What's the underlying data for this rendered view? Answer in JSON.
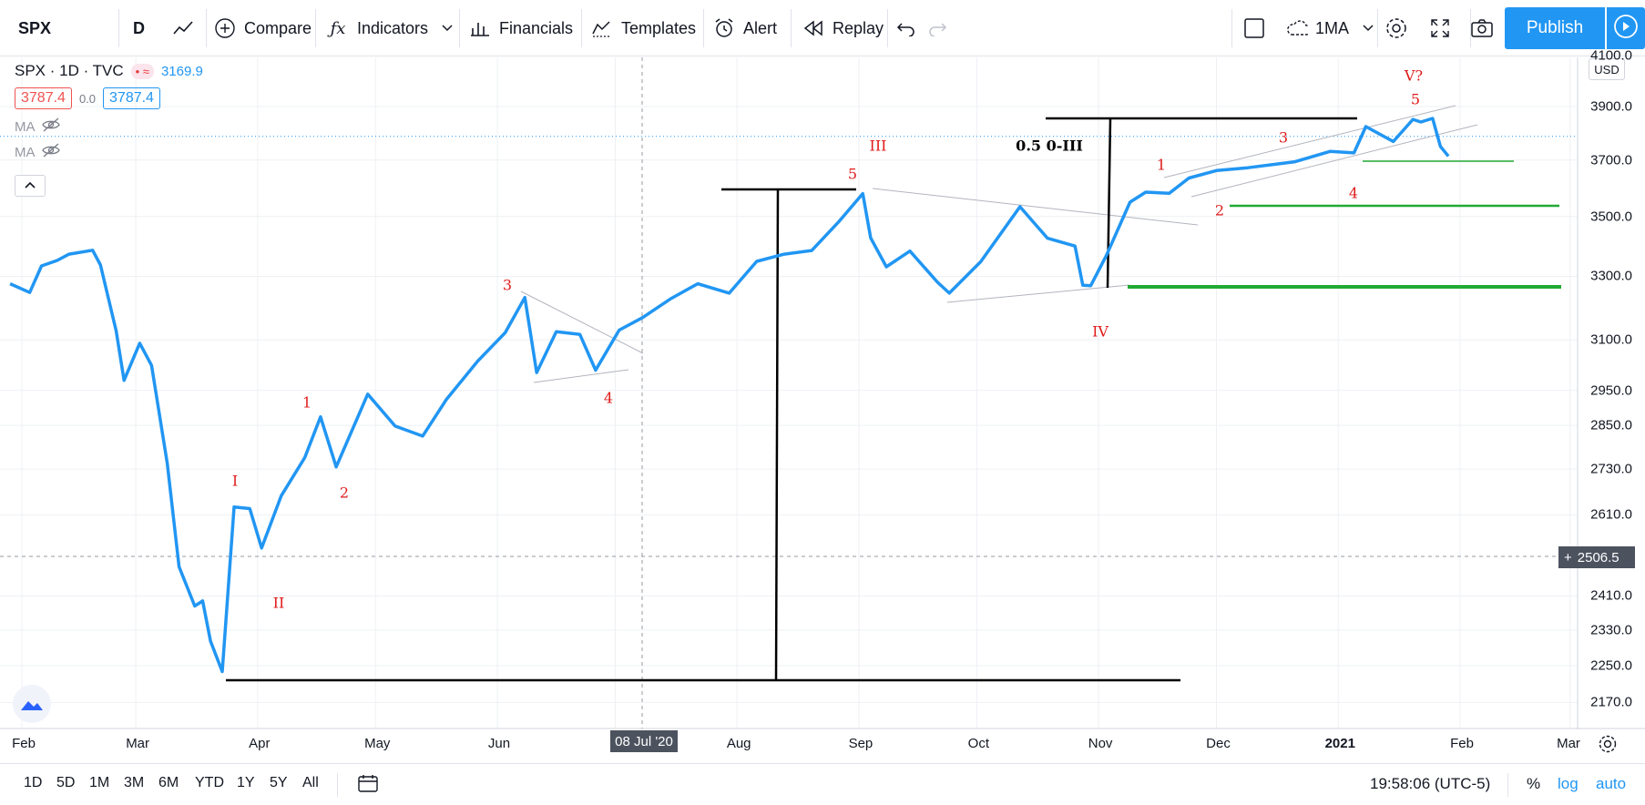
{
  "toolbar": {
    "symbol": "SPX",
    "interval": "D",
    "compare_label": "Compare",
    "indicators_label": "Indicators",
    "financials_label": "Financials",
    "templates_label": "Templates",
    "alert_label": "Alert",
    "replay_label": "Replay",
    "layout_label": "1MA",
    "publish_label": "Publish"
  },
  "legend": {
    "title": "SPX · 1D · TVC",
    "last_value": "3169.9",
    "bid": "3787.4",
    "spread": "0.0",
    "ask": "3787.4",
    "ma1": "MA",
    "ma2": "MA"
  },
  "axis": {
    "currency": "USD",
    "y_ticks": [
      "4100.0",
      "3900.0",
      "3700.0",
      "3500.0",
      "3300.0",
      "3100.0",
      "2950.0",
      "2850.0",
      "2730.0",
      "2610.0",
      "2410.0",
      "2330.0",
      "2250.0",
      "2170.0"
    ],
    "crosshair_price": "2506.5",
    "crosshair_date": "08 Jul '20",
    "x_ticks": [
      "Feb",
      "Mar",
      "Apr",
      "May",
      "Jun",
      "Aug",
      "Sep",
      "Oct",
      "Nov",
      "Dec",
      "2021",
      "Feb",
      "Mar"
    ]
  },
  "annotations": {
    "waves": [
      "I",
      "II",
      "1",
      "2",
      "3",
      "4",
      "III",
      "5",
      "IV",
      "1",
      "2",
      "3",
      "4",
      "5",
      "V?"
    ],
    "retracement_label": "0.5 0-III",
    "wave_color": "#e01b1b",
    "support_color": "#22aa33",
    "line_color": "#2196f3"
  },
  "chart_data": {
    "type": "line",
    "title": "SPX · 1D · TVC",
    "series": [
      {
        "name": "SPX",
        "x": [
          "2020-01-29",
          "2020-02-03",
          "2020-02-06",
          "2020-02-10",
          "2020-02-13",
          "2020-02-19",
          "2020-02-21",
          "2020-02-25",
          "2020-02-27",
          "2020-03-02",
          "2020-03-05",
          "2020-03-09",
          "2020-03-12",
          "2020-03-16",
          "2020-03-18",
          "2020-03-20",
          "2020-03-23",
          "2020-03-26",
          "2020-03-30",
          "2020-04-02",
          "2020-04-07",
          "2020-04-13",
          "2020-04-17",
          "2020-04-21",
          "2020-04-29",
          "2020-05-06",
          "2020-05-13",
          "2020-05-19",
          "2020-05-27",
          "2020-06-03",
          "2020-06-08",
          "2020-06-11",
          "2020-06-16",
          "2020-06-22",
          "2020-06-26",
          "2020-07-02",
          "2020-07-08",
          "2020-07-15",
          "2020-07-22",
          "2020-07-30",
          "2020-08-06",
          "2020-08-13",
          "2020-08-20",
          "2020-08-27",
          "2020-09-02",
          "2020-09-04",
          "2020-09-08",
          "2020-09-14",
          "2020-09-21",
          "2020-09-24",
          "2020-10-02",
          "2020-10-12",
          "2020-10-19",
          "2020-10-26",
          "2020-10-28",
          "2020-10-30",
          "2020-11-03",
          "2020-11-09",
          "2020-11-13",
          "2020-11-19",
          "2020-11-24",
          "2020-12-01",
          "2020-12-09",
          "2020-12-21",
          "2020-12-30",
          "2021-01-05",
          "2021-01-08",
          "2021-01-15",
          "2021-01-20",
          "2021-01-22",
          "2021-01-25",
          "2021-01-27",
          "2021-01-29"
        ],
        "values": [
          3276,
          3248,
          3334,
          3352,
          3373,
          3386,
          3337,
          3128,
          2979,
          3090,
          3023,
          2746,
          2480,
          2386,
          2398,
          2305,
          2237,
          2630,
          2626,
          2526,
          2659,
          2761,
          2874,
          2736,
          2939,
          2848,
          2820,
          2923,
          3036,
          3122,
          3232,
          3002,
          3125,
          3117,
          3009,
          3130,
          3169,
          3227,
          3276,
          3246,
          3349,
          3373,
          3385,
          3484,
          3580,
          3427,
          3331,
          3383,
          3281,
          3246,
          3348,
          3534,
          3426,
          3400,
          3271,
          3270,
          3369,
          3550,
          3585,
          3581,
          3635,
          3662,
          3672,
          3694,
          3732,
          3726,
          3824,
          3768,
          3851,
          3841,
          3855,
          3750,
          3714
        ]
      }
    ],
    "ylim": [
      2170,
      4100
    ],
    "log_scale": true,
    "grid": true
  }
}
